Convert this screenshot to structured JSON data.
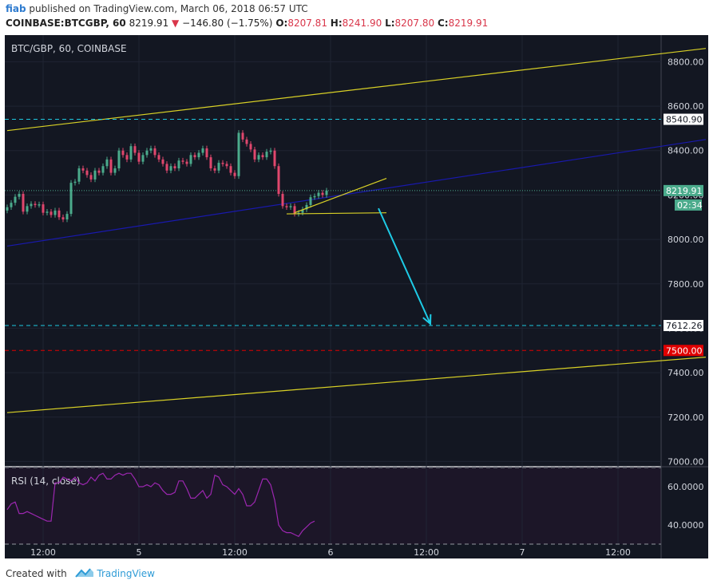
{
  "header": {
    "user": "fiab",
    "published_text": " published on TradingView.com, March 06, 2018 06:57 UTC",
    "symbol_tf": "COINBASE:BTCGBP, 60",
    "last": "8219.91",
    "change_arrow": "▼",
    "change": "−146.80 (−1.75%)",
    "o_label": "O:",
    "o_val": "8207.81",
    "h_label": "H:",
    "h_val": "8241.90",
    "l_label": "L:",
    "l_val": "8207.80",
    "c_label": "C:",
    "c_val": "8219.91"
  },
  "footer": {
    "created_with": "Created with",
    "brand": "TradingView"
  },
  "colors": {
    "background": "#131722",
    "up": "#4bab8c",
    "down": "#e0476d",
    "rsi": "#9c27b0",
    "channel": "#d9d126",
    "midline": "#1919ad",
    "dashed_level": "#1ec8e0",
    "red_level": "#e00000",
    "arrow": "#1ecbe6"
  },
  "chart_data": [
    {
      "type": "candlestick",
      "title": "BTC/GBP, 60, COINBASE",
      "ylim": [
        6980,
        8920
      ],
      "y_ticks": [
        7000,
        7200,
        7400,
        7600,
        7800,
        8000,
        8200,
        8400,
        8600,
        8800
      ],
      "x_tick_labels": [
        {
          "label": "12:00",
          "bar": 9
        },
        {
          "label": "5",
          "bar": 33
        },
        {
          "label": "12:00",
          "bar": 57
        },
        {
          "label": "6",
          "bar": 81
        },
        {
          "label": "12:00",
          "bar": 105
        },
        {
          "label": "7",
          "bar": 129
        },
        {
          "label": "12:00",
          "bar": 153
        }
      ],
      "price_labels": [
        {
          "label": "8540.90",
          "value": 8540.9,
          "style": "dashed-blue"
        },
        {
          "label": "8219.91",
          "value": 8219.91,
          "style": "last"
        },
        {
          "label": "02:34",
          "value": 8155,
          "style": "timer"
        },
        {
          "label": "7612.26",
          "value": 7612.26,
          "style": "dashed-blue"
        },
        {
          "label": "7500.00",
          "value": 7500,
          "style": "dashed-red"
        }
      ],
      "horizontal_levels": [
        8540.9,
        8219.91,
        7612.26,
        7500
      ],
      "closes": [
        8145,
        8165,
        8192,
        8205,
        8125,
        8150,
        8160,
        8155,
        8158,
        8120,
        8125,
        8110,
        8130,
        8100,
        8090,
        8115,
        8255,
        8260,
        8320,
        8310,
        8290,
        8270,
        8310,
        8300,
        8330,
        8360,
        8300,
        8320,
        8400,
        8380,
        8360,
        8420,
        8390,
        8350,
        8380,
        8400,
        8410,
        8380,
        8360,
        8340,
        8310,
        8330,
        8320,
        8355,
        8350,
        8340,
        8380,
        8370,
        8390,
        8410,
        8370,
        8320,
        8310,
        8345,
        8340,
        8330,
        8300,
        8285,
        8480,
        8450,
        8430,
        8405,
        8360,
        8380,
        8370,
        8395,
        8400,
        8330,
        8205,
        8150,
        8145,
        8150,
        8115,
        8120,
        8135,
        8155,
        8190,
        8195,
        8210,
        8200,
        8219.91
      ],
      "open_first": 8130,
      "channel_lines": [
        {
          "name": "upper",
          "from": {
            "bar": 0,
            "value": 8490
          },
          "to": {
            "bar": 175,
            "value": 8860
          }
        },
        {
          "name": "lower",
          "from": {
            "bar": 0,
            "value": 7220
          },
          "to": {
            "bar": 175,
            "value": 7470
          }
        },
        {
          "name": "mid",
          "from": {
            "bar": 0,
            "value": 7970
          },
          "to": {
            "bar": 175,
            "value": 8450
          }
        }
      ],
      "pattern_lines": [
        {
          "from": {
            "bar": 72,
            "value": 8120
          },
          "to": {
            "bar": 95,
            "value": 8275
          }
        },
        {
          "from": {
            "bar": 70,
            "value": 8115
          },
          "to": {
            "bar": 95,
            "value": 8120
          }
        }
      ],
      "arrow": {
        "from": {
          "bar": 93,
          "value": 8140
        },
        "to": {
          "bar": 106,
          "value": 7620
        }
      }
    },
    {
      "type": "line",
      "title": "RSI (14, close)",
      "ylim": [
        30,
        70
      ],
      "y_ticks": [
        40,
        60
      ],
      "tick_labels": [
        "40.0000",
        "60.0000"
      ],
      "bands": [
        70,
        30
      ],
      "values": [
        48,
        51,
        52,
        46,
        46,
        47,
        46,
        45,
        44,
        43,
        42,
        42,
        62,
        62,
        65,
        64,
        63,
        65,
        62,
        61,
        62,
        65,
        63,
        66,
        67,
        64,
        64,
        66,
        67,
        66,
        67,
        67,
        64,
        60,
        60,
        61,
        60,
        62,
        61,
        58,
        56,
        56,
        57,
        63,
        63,
        59,
        54,
        54,
        56,
        58,
        54,
        56,
        66,
        65,
        61,
        60,
        58,
        56,
        59,
        56,
        50,
        50,
        52,
        58,
        64,
        64,
        61,
        53,
        40,
        37,
        36,
        36,
        35,
        34,
        37,
        39,
        41,
        42
      ]
    }
  ]
}
